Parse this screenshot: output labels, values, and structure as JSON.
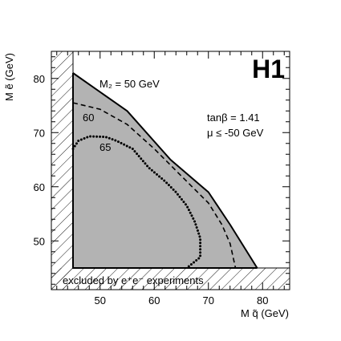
{
  "chart_data": {
    "type": "area",
    "logo": "H1",
    "xlabel": "M q̃ (GeV)",
    "ylabel": "M ẽ (GeV)",
    "xlim": [
      41,
      85
    ],
    "ylim": [
      41,
      85
    ],
    "xticks": [
      50,
      60,
      70,
      80
    ],
    "yticks": [
      50,
      60,
      70,
      80
    ],
    "grid": false,
    "excluded_label": "excluded by e⁺e⁻ experiments",
    "excluded_band": {
      "x_below": 45,
      "y_below": 45
    },
    "params": {
      "tanbeta": "tanβ = 1.41",
      "mu": "μ ≤ -50 GeV"
    },
    "series": [
      {
        "name": "M₂ = 50 GeV",
        "style": "solid",
        "fill": "#b3b3b3",
        "points": [
          [
            45,
            81
          ],
          [
            55,
            74
          ],
          [
            63,
            65
          ],
          [
            70,
            59
          ],
          [
            74,
            53
          ],
          [
            79,
            45
          ]
        ]
      },
      {
        "name": "60",
        "style": "dashed",
        "points": [
          [
            45,
            75.5
          ],
          [
            50,
            74.3
          ],
          [
            55,
            71.5
          ],
          [
            60,
            67
          ],
          [
            65,
            62
          ],
          [
            70,
            57
          ],
          [
            72.5,
            53
          ],
          [
            74,
            49.5
          ],
          [
            75,
            45
          ]
        ]
      },
      {
        "name": "65",
        "style": "dotted",
        "points": [
          [
            45,
            67
          ],
          [
            46,
            68.5
          ],
          [
            48,
            69.3
          ],
          [
            51,
            69.2
          ],
          [
            53,
            68.5
          ],
          [
            56,
            67
          ],
          [
            59,
            63.5
          ],
          [
            62,
            61
          ],
          [
            64,
            59
          ],
          [
            66,
            56.5
          ],
          [
            67.5,
            53.5
          ],
          [
            68.5,
            50.5
          ],
          [
            68.5,
            47
          ],
          [
            66,
            45
          ]
        ]
      }
    ]
  }
}
